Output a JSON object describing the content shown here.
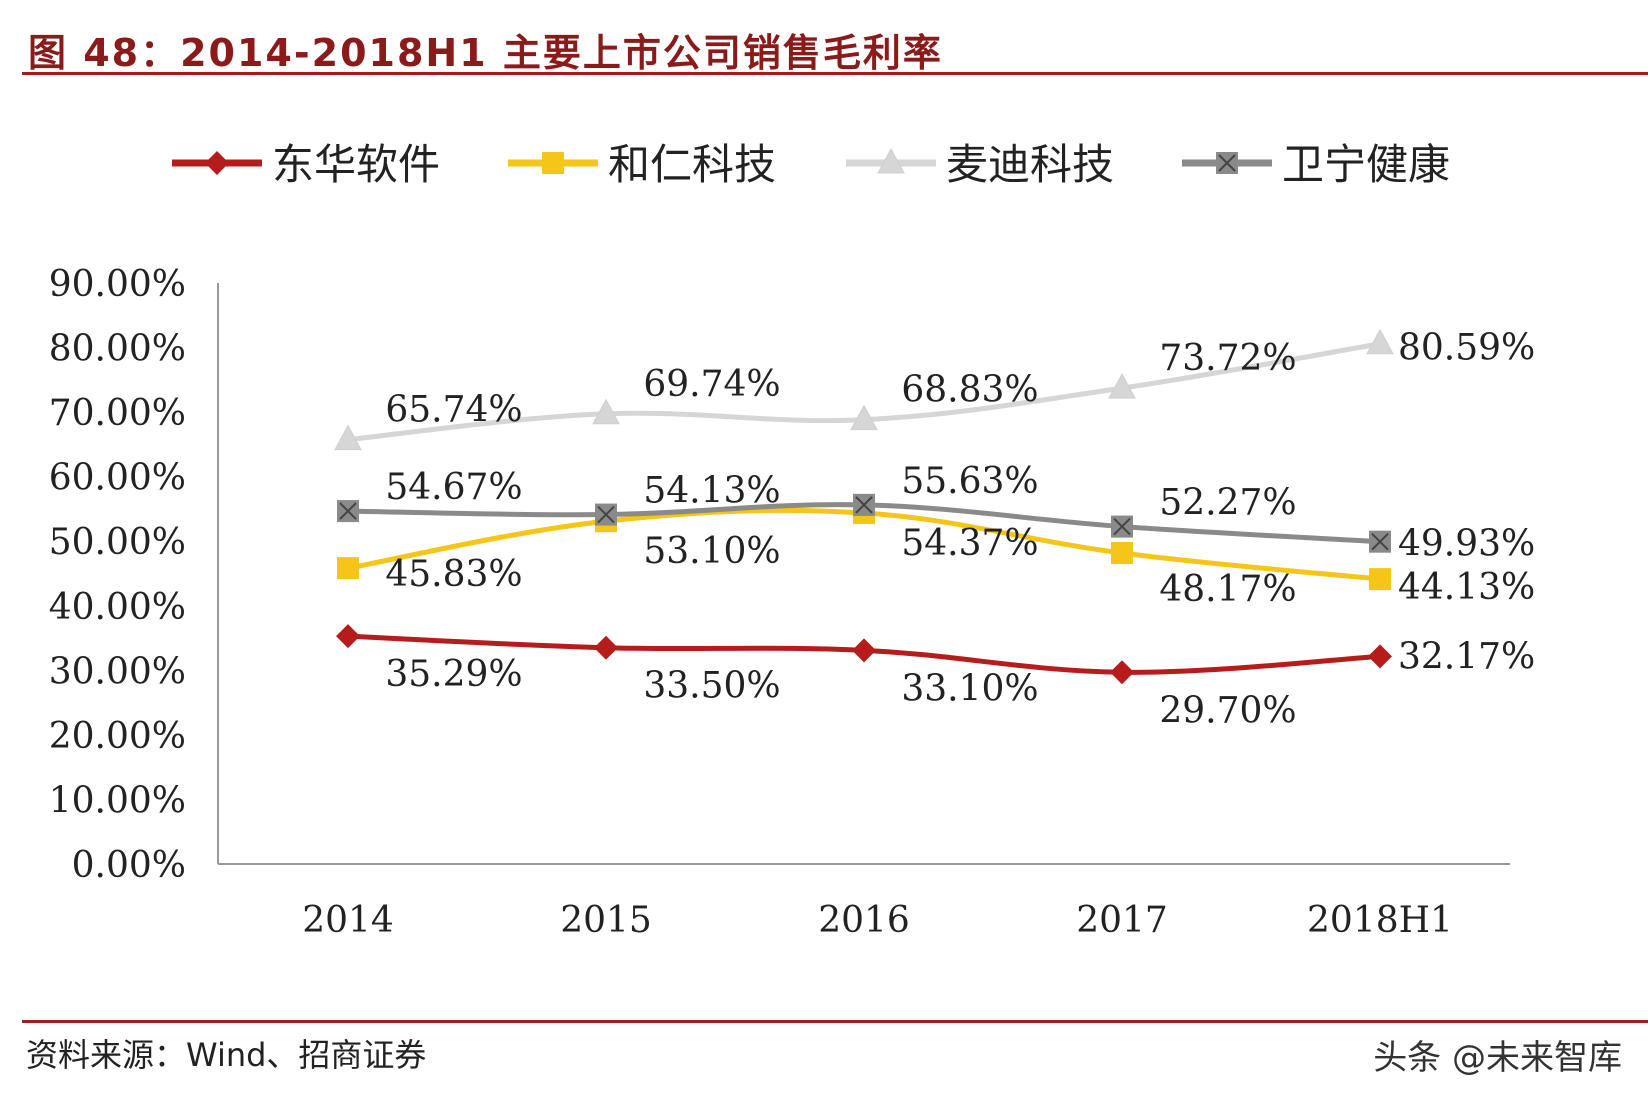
{
  "title": "图 48：2014-2018H1 主要上市公司销售毛利率",
  "source": "资料来源：Wind、招商证券",
  "watermark": "头条 @未来智库",
  "chart_data": {
    "type": "line",
    "categories": [
      "2014",
      "2015",
      "2016",
      "2017",
      "2018H1"
    ],
    "ylim": [
      0,
      90
    ],
    "yticks": [
      "0.00%",
      "10.00%",
      "20.00%",
      "30.00%",
      "40.00%",
      "50.00%",
      "60.00%",
      "70.00%",
      "80.00%",
      "90.00%"
    ],
    "legend_position": "top",
    "grid": false,
    "series": [
      {
        "name": "东华软件",
        "marker": "diamond",
        "color": "#b71c1c",
        "values": [
          35.29,
          33.5,
          33.1,
          29.7,
          32.17
        ],
        "labels": [
          "35.29%",
          "33.50%",
          "33.10%",
          "29.70%",
          "32.17%"
        ]
      },
      {
        "name": "和仁科技",
        "marker": "square",
        "color": "#f5c518",
        "values": [
          45.83,
          53.1,
          54.37,
          48.17,
          44.13
        ],
        "labels": [
          "45.83%",
          "53.10%",
          "54.37%",
          "48.17%",
          "44.13%"
        ]
      },
      {
        "name": "麦迪科技",
        "marker": "triangle",
        "color": "#d6d6d6",
        "values": [
          65.74,
          69.74,
          68.83,
          73.72,
          80.59
        ],
        "labels": [
          "65.74%",
          "69.74%",
          "68.83%",
          "73.72%",
          "80.59%"
        ]
      },
      {
        "name": "卫宁健康",
        "marker": "square-x",
        "color": "#8a8a8a",
        "values": [
          54.67,
          54.13,
          55.63,
          52.27,
          49.93
        ],
        "labels": [
          "54.67%",
          "54.13%",
          "55.63%",
          "52.27%",
          "49.93%"
        ]
      }
    ]
  }
}
